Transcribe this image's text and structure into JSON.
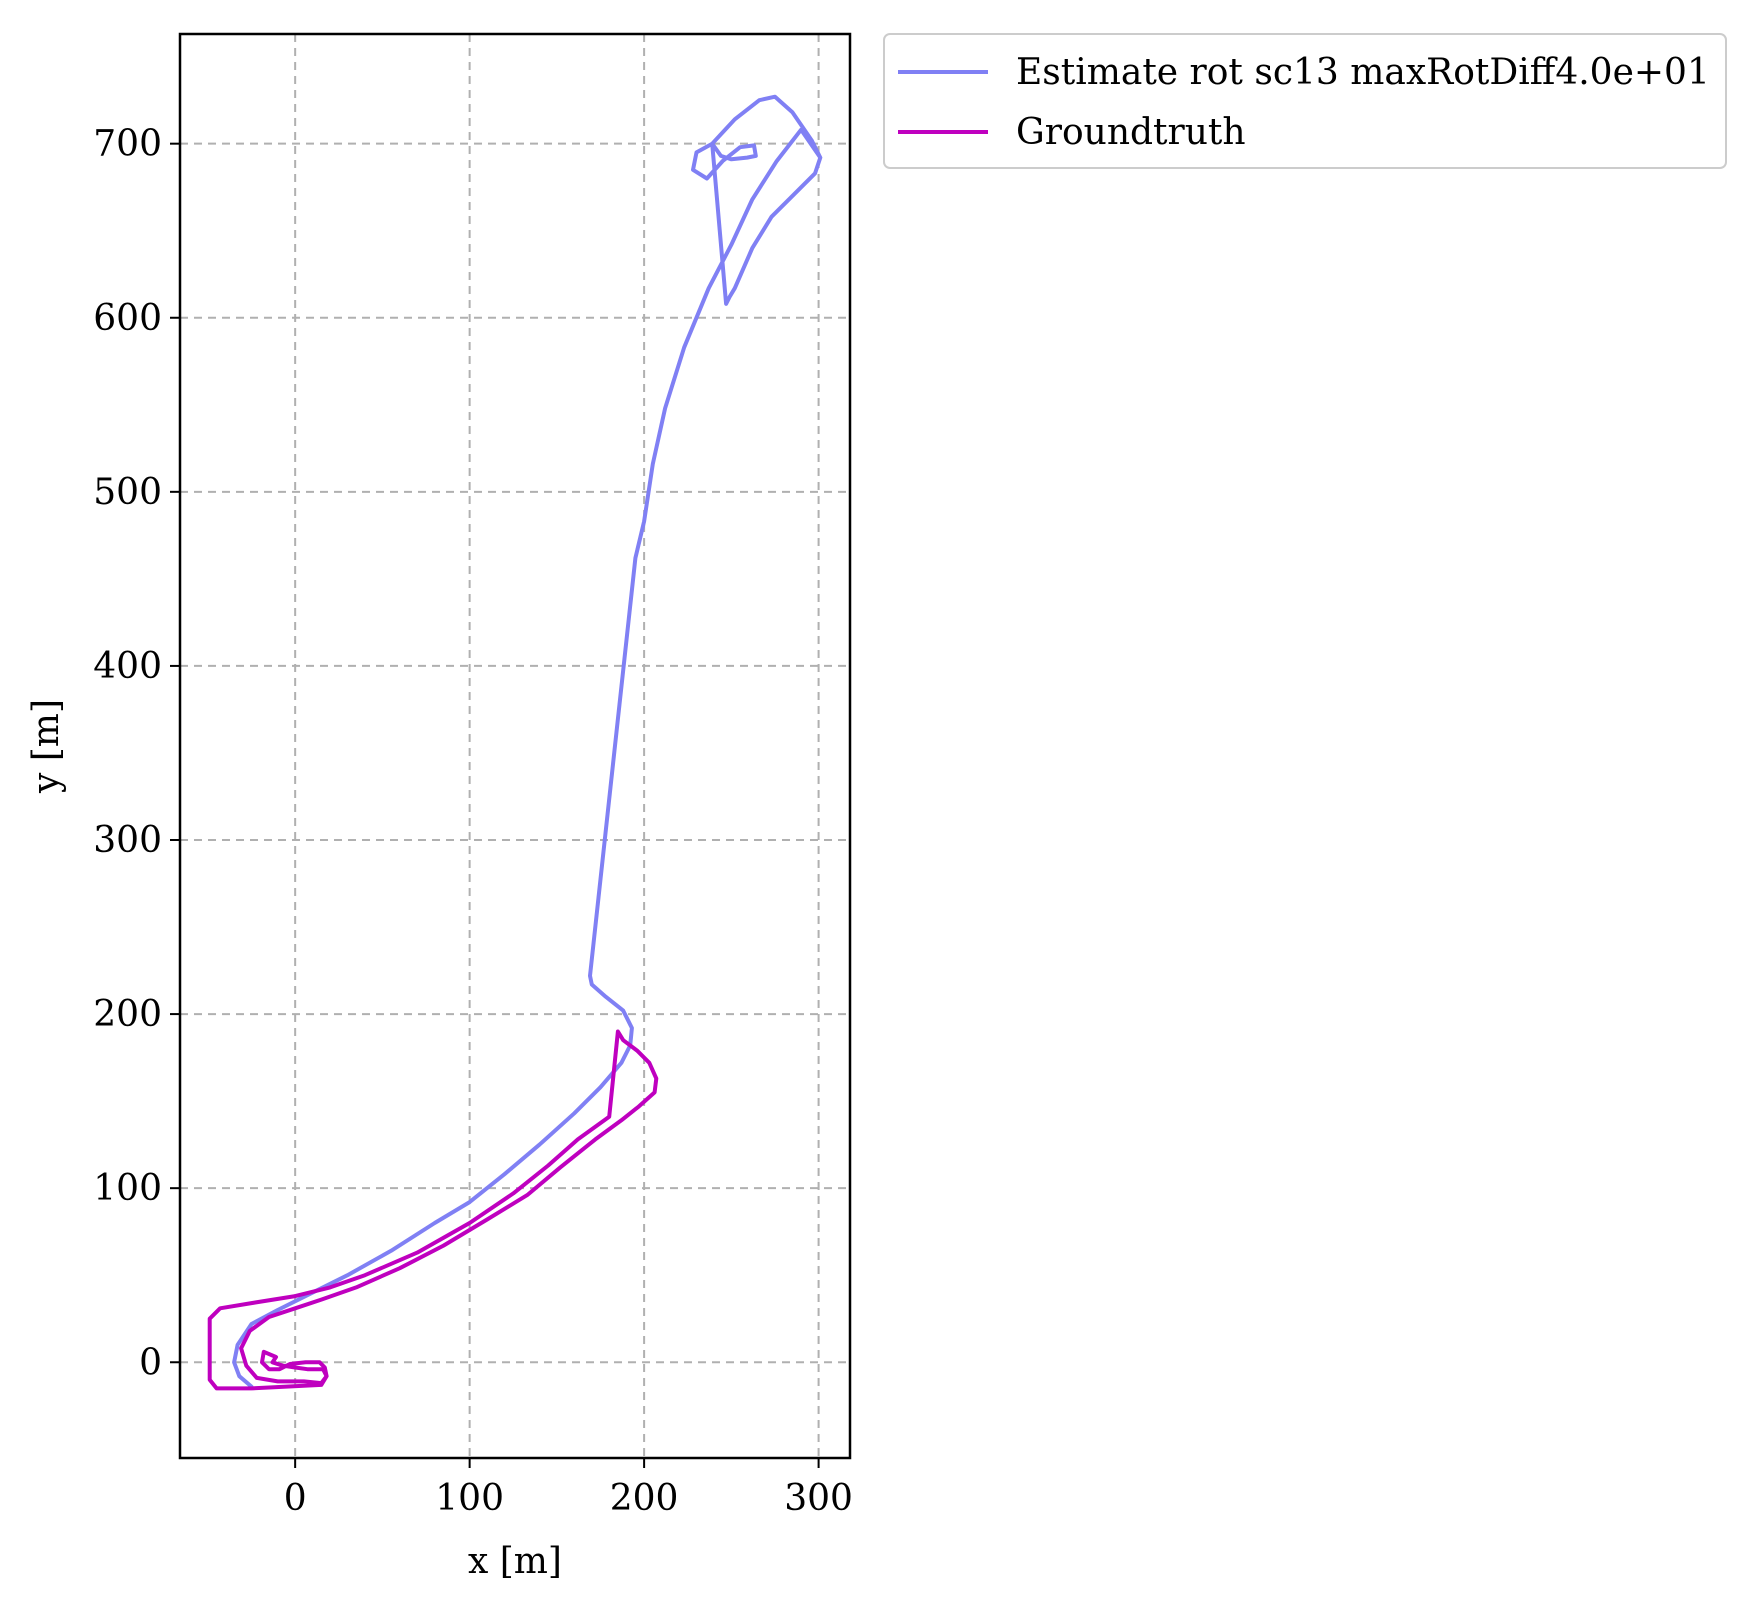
{
  "chart_data": {
    "type": "line",
    "title": "",
    "xlabel": "x [m]",
    "ylabel": "y [m]",
    "xlim": [
      -66,
      318
    ],
    "ylim": [
      -55,
      763
    ],
    "grid": true,
    "legend_position": "outside-top-right",
    "x_ticks": [
      0,
      100,
      200,
      300
    ],
    "x_tick_labels": [
      "0",
      "100",
      "200",
      "300"
    ],
    "y_ticks": [
      0,
      100,
      200,
      300,
      400,
      500,
      600,
      700
    ],
    "y_tick_labels": [
      "0",
      "100",
      "200",
      "300",
      "400",
      "500",
      "600",
      "700"
    ],
    "series": [
      {
        "name": "Estimate rot sc13 maxRotDiff4.0e+01",
        "color": "#8080f4",
        "points": [
          [
            -25,
            -14
          ],
          [
            -32,
            -8
          ],
          [
            -35,
            0
          ],
          [
            -33,
            10
          ],
          [
            -25,
            22
          ],
          [
            -10,
            30
          ],
          [
            10,
            40
          ],
          [
            30,
            50
          ],
          [
            55,
            64
          ],
          [
            80,
            80
          ],
          [
            100,
            92
          ],
          [
            120,
            108
          ],
          [
            140,
            125
          ],
          [
            160,
            143
          ],
          [
            175,
            158
          ],
          [
            187,
            172
          ],
          [
            192,
            182
          ],
          [
            193,
            192
          ],
          [
            188,
            202
          ],
          [
            178,
            210
          ],
          [
            170,
            217
          ],
          [
            169,
            222
          ],
          [
            195,
            462
          ],
          [
            200,
            483
          ],
          [
            205,
            516
          ],
          [
            212,
            548
          ],
          [
            223,
            583
          ],
          [
            237,
            617
          ],
          [
            250,
            642
          ],
          [
            262,
            668
          ],
          [
            276,
            690
          ],
          [
            290,
            708
          ],
          [
            301,
            692
          ],
          [
            298,
            683
          ],
          [
            286,
            671
          ],
          [
            273,
            658
          ],
          [
            262,
            640
          ],
          [
            252,
            617
          ],
          [
            249,
            612
          ],
          [
            247,
            608
          ],
          [
            239,
            700
          ],
          [
            230,
            695
          ],
          [
            228,
            685
          ],
          [
            236,
            680
          ],
          [
            245,
            690
          ],
          [
            255,
            698
          ],
          [
            263,
            699
          ],
          [
            264,
            693
          ],
          [
            259,
            692
          ],
          [
            250,
            691
          ],
          [
            244,
            693
          ],
          [
            239,
            700
          ],
          [
            252,
            714
          ],
          [
            266,
            725
          ],
          [
            275,
            727
          ],
          [
            285,
            718
          ],
          [
            296,
            702
          ],
          [
            301,
            692
          ]
        ]
      },
      {
        "name": "Groundtruth",
        "color": "#bf00bf",
        "points": [
          [
            -13,
            0
          ],
          [
            -11,
            3
          ],
          [
            -18,
            6
          ],
          [
            -19,
            0
          ],
          [
            -15,
            -4
          ],
          [
            -9,
            -4
          ],
          [
            -3,
            -1
          ],
          [
            6,
            0
          ],
          [
            14,
            0
          ],
          [
            17,
            -3
          ],
          [
            18,
            -8
          ],
          [
            15,
            -13
          ],
          [
            -25,
            -15
          ],
          [
            -45,
            -15
          ],
          [
            -49,
            -10
          ],
          [
            -49,
            25
          ],
          [
            -43,
            31
          ],
          [
            -25,
            34
          ],
          [
            0,
            38
          ],
          [
            20,
            43
          ],
          [
            40,
            50
          ],
          [
            70,
            63
          ],
          [
            100,
            80
          ],
          [
            125,
            97
          ],
          [
            145,
            113
          ],
          [
            162,
            128
          ],
          [
            180,
            141
          ],
          [
            185,
            190
          ],
          [
            188,
            185
          ],
          [
            196,
            179
          ],
          [
            203,
            172
          ],
          [
            207,
            163
          ],
          [
            206,
            155
          ],
          [
            197,
            147
          ],
          [
            187,
            139
          ],
          [
            172,
            128
          ],
          [
            152,
            112
          ],
          [
            133,
            96
          ],
          [
            110,
            82
          ],
          [
            85,
            67
          ],
          [
            60,
            54
          ],
          [
            35,
            43
          ],
          [
            15,
            36
          ],
          [
            0,
            31
          ],
          [
            -15,
            26
          ],
          [
            -26,
            18
          ],
          [
            -31,
            8
          ],
          [
            -28,
            -2
          ],
          [
            -22,
            -9
          ],
          [
            -10,
            -11
          ],
          [
            5,
            -11
          ],
          [
            15,
            -12
          ],
          [
            18,
            -8
          ],
          [
            16,
            -4
          ],
          [
            7,
            -4
          ],
          [
            0,
            -3
          ],
          [
            -7,
            -2
          ],
          [
            -13,
            0
          ]
        ]
      }
    ]
  }
}
